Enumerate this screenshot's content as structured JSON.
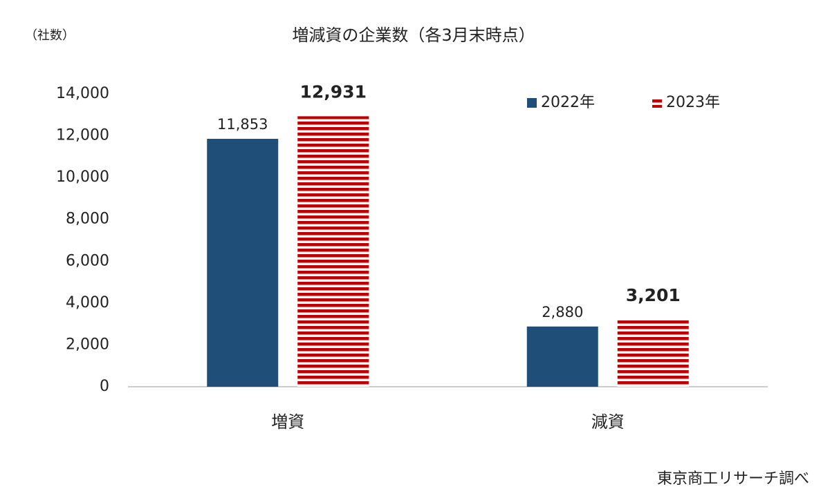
{
  "chart_data": {
    "type": "bar",
    "title": "増減資の企業数（各3月末時点）",
    "y_label": "（社数）",
    "source": "東京商工リサーチ調べ",
    "categories": [
      "増資",
      "減資"
    ],
    "series": [
      {
        "name": "2022年",
        "color": "#1f4e79",
        "values": [
          11853,
          2880
        ],
        "value_labels": [
          "11,853",
          "2,880"
        ]
      },
      {
        "name": "2023年",
        "color": "#c00000",
        "pattern": "horizontal-stripes",
        "values": [
          12931,
          3201
        ],
        "value_labels": [
          "12,931",
          "3,201"
        ]
      }
    ],
    "ylim": [
      0,
      14000
    ],
    "yticks": [
      0,
      {
        "value": 2000,
        "label": "2,000"
      },
      {
        "value": 4000,
        "label": "4,000"
      },
      {
        "value": 6000,
        "label": "6,000"
      },
      {
        "value": 8000,
        "label": "8,000"
      },
      {
        "value": 10000,
        "label": "10,000"
      },
      {
        "value": 12000,
        "label": "12,000"
      },
      {
        "value": 14000,
        "label": "14,000"
      }
    ],
    "grid": false,
    "legend": "top-right"
  }
}
